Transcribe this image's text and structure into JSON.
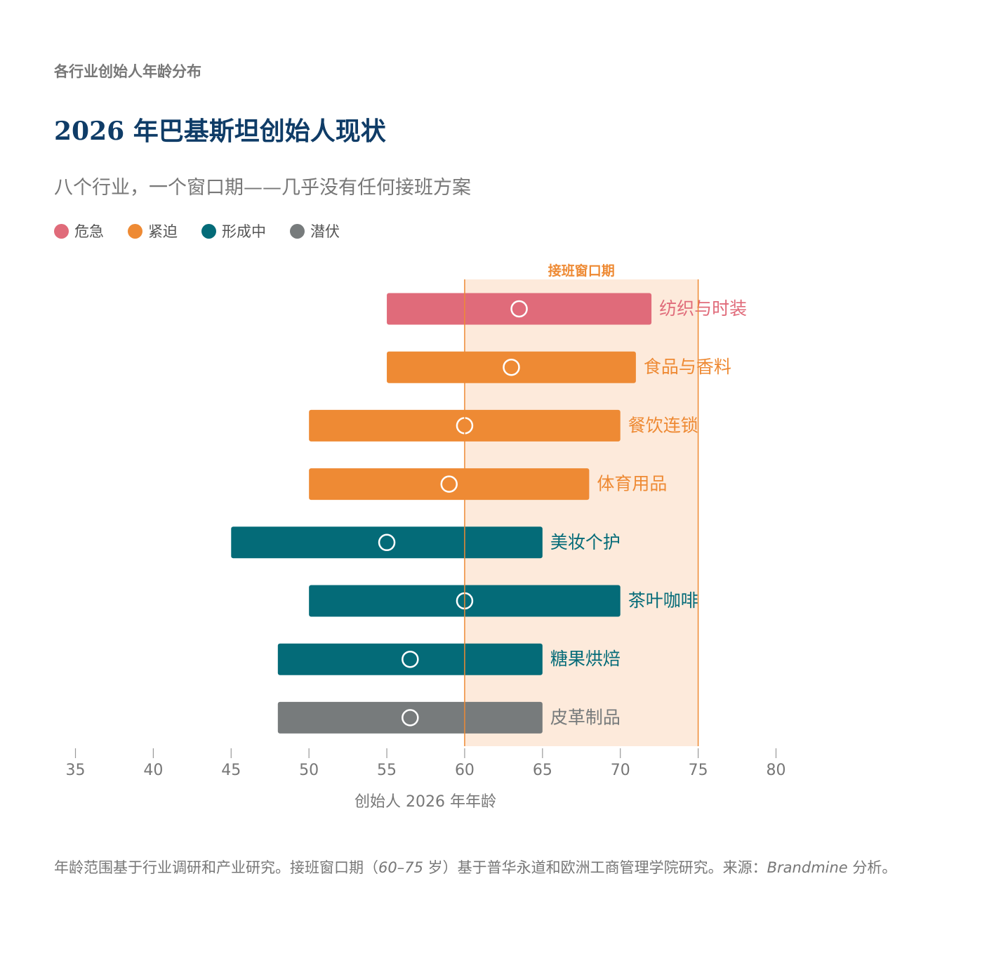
{
  "header": {
    "kicker": "各行业创始人年龄分布",
    "title": "2026 年巴基斯坦创始人现状",
    "subtitle": "八个行业，一个窗口期——几乎没有任何接班方案"
  },
  "legend": [
    {
      "label": "危急",
      "color": "#e06b7a"
    },
    {
      "label": "紧迫",
      "color": "#ee8a34"
    },
    {
      "label": "形成中",
      "color": "#046b78"
    },
    {
      "label": "潜伏",
      "color": "#777b7c"
    }
  ],
  "chart_data": {
    "type": "bar",
    "orientation": "horizontal-range",
    "xlabel": "创始人 2026 年年龄",
    "xlim": [
      35,
      80
    ],
    "xticks": [
      35,
      40,
      45,
      50,
      55,
      60,
      65,
      70,
      75,
      80
    ],
    "window": {
      "label": "接班窗口期",
      "from": 60,
      "to": 75,
      "color": "#fdeadb",
      "line_color": "#ee8a34"
    },
    "categories": [
      "纺织与时装",
      "食品与香料",
      "餐饮连锁",
      "体育用品",
      "美妆个护",
      "茶叶咖啡",
      "糖果烘焙",
      "皮革制品"
    ],
    "series": [
      {
        "category": "纺织与时装",
        "status": "危急",
        "color": "#e06b7a",
        "min": 55,
        "max": 72,
        "median": 63.5
      },
      {
        "category": "食品与香料",
        "status": "紧迫",
        "color": "#ee8a34",
        "min": 55,
        "max": 71,
        "median": 63
      },
      {
        "category": "餐饮连锁",
        "status": "紧迫",
        "color": "#ee8a34",
        "min": 50,
        "max": 70,
        "median": 60
      },
      {
        "category": "体育用品",
        "status": "紧迫",
        "color": "#ee8a34",
        "min": 50,
        "max": 68,
        "median": 59
      },
      {
        "category": "美妆个护",
        "status": "形成中",
        "color": "#046b78",
        "min": 45,
        "max": 65,
        "median": 55
      },
      {
        "category": "茶叶咖啡",
        "status": "形成中",
        "color": "#046b78",
        "min": 50,
        "max": 70,
        "median": 60
      },
      {
        "category": "糖果烘焙",
        "status": "形成中",
        "color": "#046b78",
        "min": 48,
        "max": 65,
        "median": 56.5
      },
      {
        "category": "皮革制品",
        "status": "潜伏",
        "color": "#777b7c",
        "min": 48,
        "max": 65,
        "median": 56.5
      }
    ]
  },
  "footnote": {
    "text_a": "年龄范围基于行业调研和产业研究。接班窗口期（",
    "range": "60–75",
    "text_b": " 岁）基于普华永道和欧洲工商管理学院研究。来源：",
    "source": "Brandmine",
    "text_c": " 分析。"
  }
}
